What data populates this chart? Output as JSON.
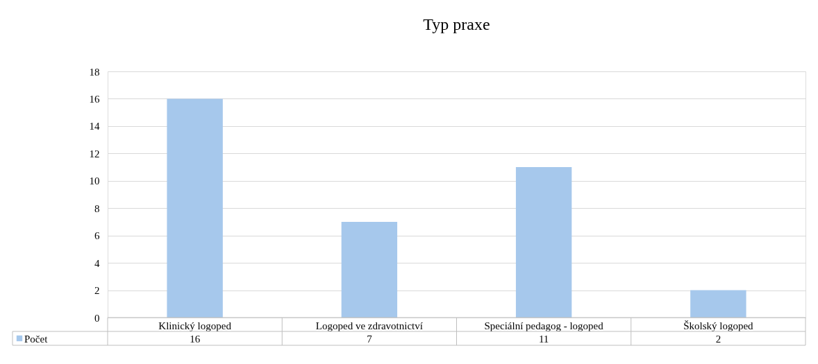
{
  "chart_data": {
    "type": "bar",
    "title": "Typ praxe",
    "categories": [
      "Klinický logoped",
      "Logoped ve zdravotnictví",
      "Speciální pedagog - logoped",
      "Školský logoped"
    ],
    "series": [
      {
        "name": "Počet",
        "color": "#a6c8ec",
        "values": [
          16,
          7,
          11,
          2
        ]
      }
    ],
    "ylim": [
      0,
      18
    ],
    "yticks": [
      0,
      2,
      4,
      6,
      8,
      10,
      12,
      14,
      16,
      18
    ],
    "grid": "y",
    "data_labels": true,
    "legend": "bottom left"
  }
}
